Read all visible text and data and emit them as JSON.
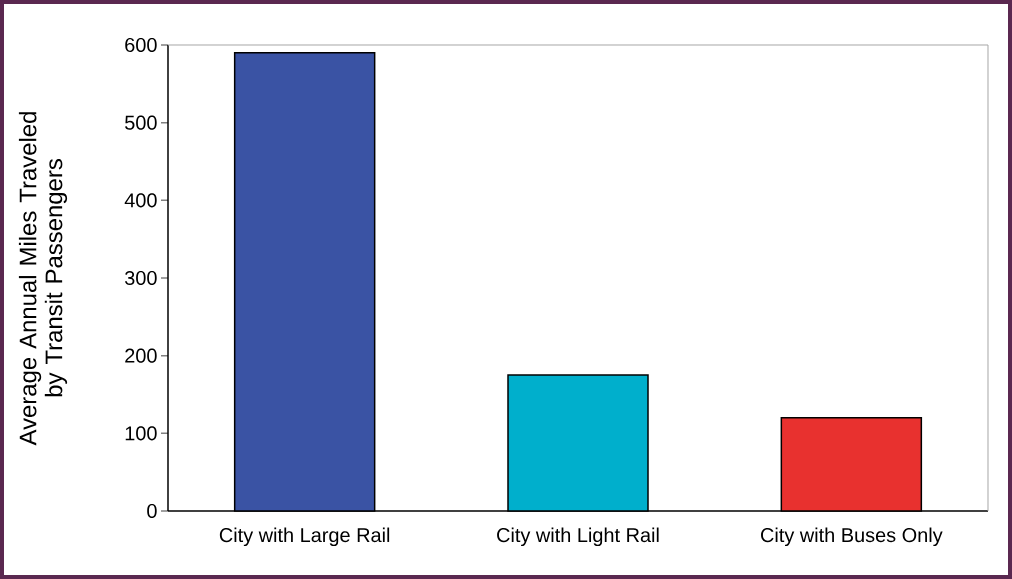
{
  "chart_data": {
    "type": "bar",
    "ylabel": "Average Annual Miles Traveled by Transit Passengers",
    "categories": [
      "City with Large Rail",
      "City with Light Rail",
      "City with Buses Only"
    ],
    "values": [
      590,
      175,
      120
    ],
    "colors": [
      "#3a53a4",
      "#00afcc",
      "#e8312f"
    ],
    "ylim": [
      0,
      600
    ],
    "yticks": [
      0,
      100,
      200,
      300,
      400,
      500,
      600
    ],
    "grid": false
  }
}
